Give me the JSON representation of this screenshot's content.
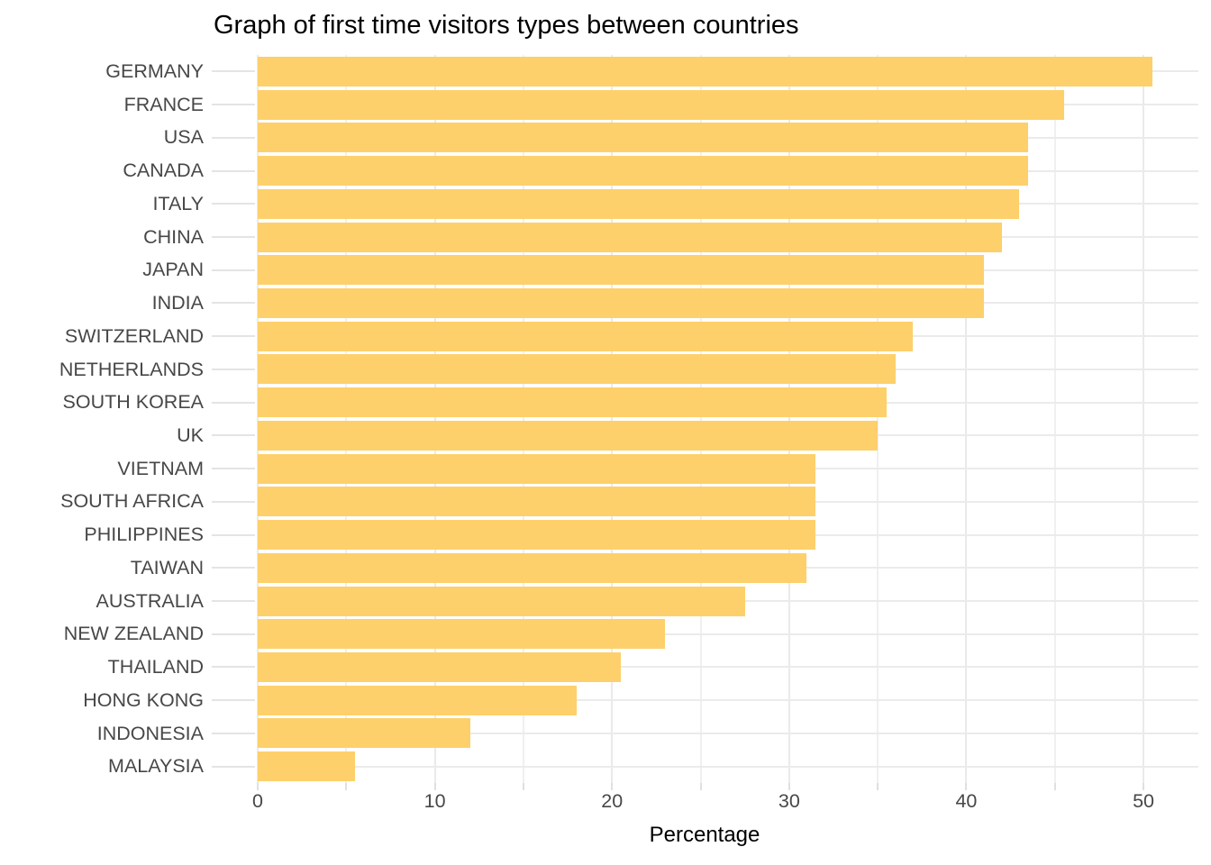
{
  "title": "Graph of first time visitors types between countries",
  "chart_data": {
    "type": "bar",
    "orientation": "horizontal",
    "title": "Graph of first time visitors types between countries",
    "xlabel": "Percentage",
    "ylabel": "",
    "categories": [
      "GERMANY",
      "FRANCE",
      "USA",
      "CANADA",
      "ITALY",
      "CHINA",
      "JAPAN",
      "INDIA",
      "SWITZERLAND",
      "NETHERLANDS",
      "SOUTH KOREA",
      "UK",
      "VIETNAM",
      "SOUTH AFRICA",
      "PHILIPPINES",
      "TAIWAN",
      "AUSTRALIA",
      "NEW ZEALAND",
      "THAILAND",
      "HONG KONG",
      "INDONESIA",
      "MALAYSIA"
    ],
    "values": [
      50.5,
      45.5,
      43.5,
      43.5,
      43,
      42,
      41,
      41,
      37,
      36,
      35.5,
      35,
      31.5,
      31.5,
      31.5,
      31,
      27.5,
      23,
      20.5,
      18,
      12,
      5.5
    ],
    "xlim": [
      0,
      53.1
    ],
    "x_major_ticks": [
      0,
      10,
      20,
      30,
      40,
      50
    ],
    "x_minor_ticks": [
      5,
      15,
      25,
      35,
      45
    ],
    "grid": "on",
    "legend": "none",
    "bar_color": "#fdd06b",
    "grid_color": "#eaeaea",
    "axis_text_color": "#474747"
  }
}
